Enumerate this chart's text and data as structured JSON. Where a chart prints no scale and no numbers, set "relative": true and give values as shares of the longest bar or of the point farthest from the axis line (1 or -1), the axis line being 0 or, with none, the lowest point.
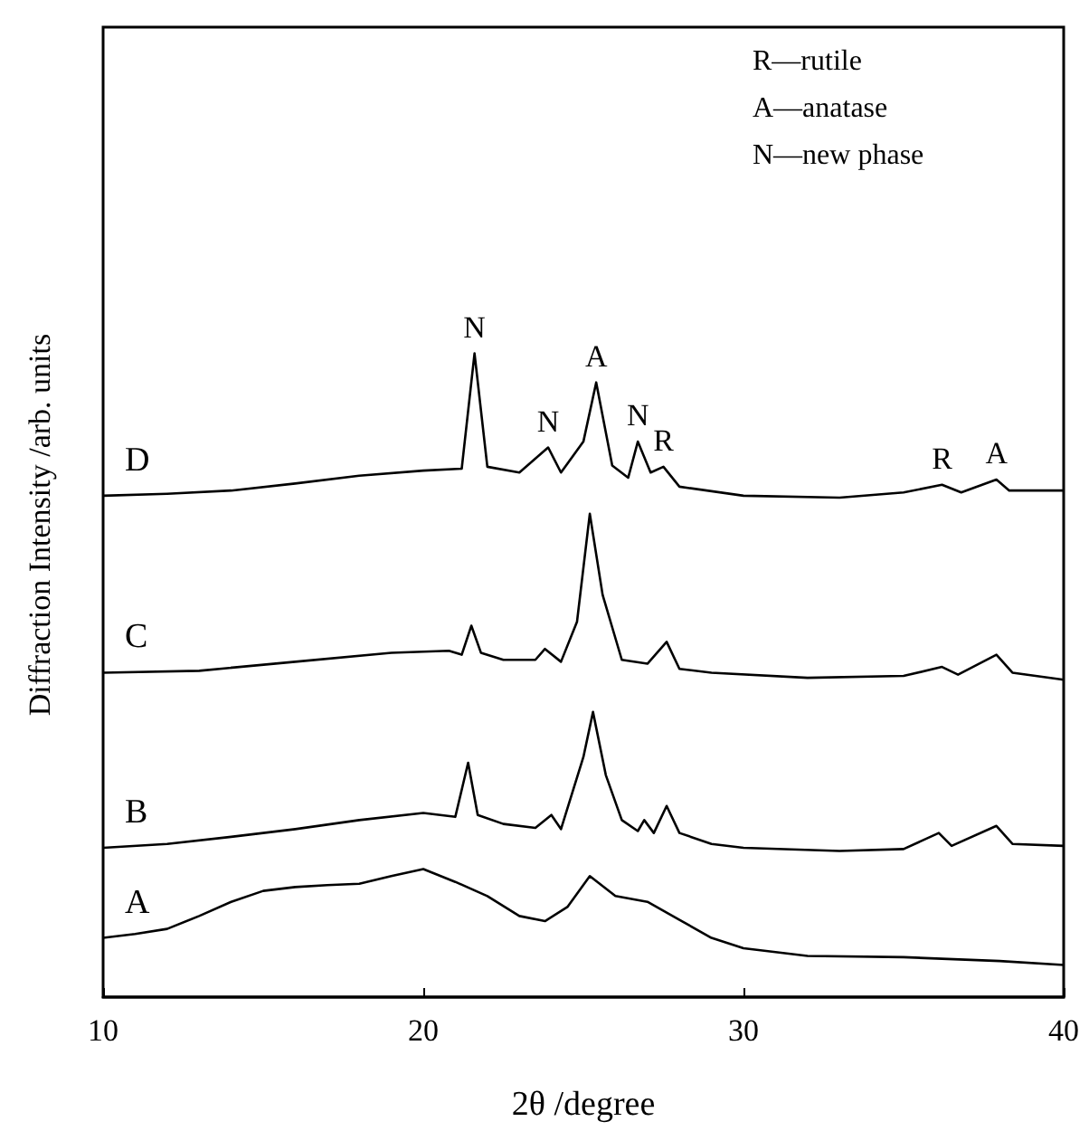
{
  "chart_data": {
    "type": "line",
    "relative": true,
    "xlabel": "2θ /degree",
    "ylabel": "Diffraction Intensity /arb. units",
    "xlim": [
      10,
      40
    ],
    "xticks": [
      10,
      20,
      30,
      40
    ],
    "grid": false,
    "legend": false,
    "marker": "none",
    "line_style": "solid",
    "annotations": [
      "R—rutile",
      "A—anatase",
      "N—new phase",
      {
        "text": "N",
        "x": 21.6,
        "y": 1
      },
      {
        "text": "N",
        "x": 23.9,
        "y": 0.854
      },
      {
        "text": "A",
        "x": 25.4,
        "y": 0.955
      },
      {
        "text": "N",
        "x": 26.7,
        "y": 0.863
      },
      {
        "text": "R",
        "x": 27.5,
        "y": 0.824
      },
      {
        "text": "R",
        "x": 36.2,
        "y": 0.796
      },
      {
        "text": "A",
        "x": 37.9,
        "y": 0.804
      }
    ],
    "series": [
      {
        "name": "A",
        "color": "#000000",
        "x": [
          10,
          11,
          12,
          13,
          14,
          15,
          16,
          17,
          18,
          19,
          20,
          21,
          22,
          23,
          23.8,
          24.5,
          25.2,
          26,
          27,
          28,
          29,
          30,
          32,
          35,
          38,
          40
        ],
        "values": [
          0.092,
          0.098,
          0.106,
          0.126,
          0.148,
          0.165,
          0.171,
          0.174,
          0.176,
          0.188,
          0.199,
          0.179,
          0.157,
          0.126,
          0.118,
          0.14,
          0.188,
          0.157,
          0.148,
          0.12,
          0.092,
          0.076,
          0.064,
          0.062,
          0.056,
          0.05
        ]
      },
      {
        "name": "B",
        "color": "#000000",
        "x": [
          10,
          12,
          14,
          16,
          18,
          20,
          21,
          21.4,
          21.7,
          22.5,
          23.5,
          24,
          24.3,
          25,
          25.3,
          25.7,
          26.2,
          26.7,
          26.9,
          27.2,
          27.6,
          28,
          29,
          30,
          33,
          35,
          36.1,
          36.5,
          37.9,
          38.4,
          40
        ],
        "values": [
          0.232,
          0.238,
          0.249,
          0.261,
          0.275,
          0.286,
          0.28,
          0.364,
          0.283,
          0.269,
          0.263,
          0.283,
          0.261,
          0.373,
          0.443,
          0.345,
          0.275,
          0.258,
          0.275,
          0.255,
          0.297,
          0.255,
          0.238,
          0.232,
          0.227,
          0.23,
          0.255,
          0.235,
          0.266,
          0.238,
          0.235
        ]
      },
      {
        "name": "C",
        "color": "#000000",
        "x": [
          10,
          13,
          16,
          19,
          20.8,
          21.2,
          21.5,
          21.8,
          22.5,
          23.5,
          23.8,
          24.3,
          24.8,
          25.2,
          25.6,
          26.2,
          27,
          27.6,
          28,
          29,
          32,
          35,
          36.2,
          36.7,
          37.9,
          38.4,
          40
        ],
        "values": [
          0.504,
          0.507,
          0.521,
          0.535,
          0.538,
          0.532,
          0.577,
          0.535,
          0.524,
          0.524,
          0.541,
          0.521,
          0.583,
          0.751,
          0.625,
          0.524,
          0.518,
          0.552,
          0.51,
          0.504,
          0.496,
          0.499,
          0.513,
          0.501,
          0.532,
          0.504,
          0.493
        ]
      },
      {
        "name": "D",
        "color": "#000000",
        "x": [
          10,
          12,
          14,
          16,
          18,
          20,
          21.2,
          21.6,
          22,
          23,
          23.9,
          24.3,
          25,
          25.4,
          25.9,
          26.4,
          26.7,
          27.1,
          27.5,
          28,
          30,
          33,
          35,
          36.2,
          36.8,
          37.9,
          38.3,
          40
        ],
        "values": [
          0.779,
          0.782,
          0.787,
          0.798,
          0.81,
          0.818,
          0.821,
          1,
          0.824,
          0.815,
          0.854,
          0.815,
          0.863,
          0.955,
          0.826,
          0.807,
          0.863,
          0.815,
          0.824,
          0.793,
          0.779,
          0.776,
          0.784,
          0.796,
          0.784,
          0.804,
          0.787,
          0.787
        ]
      }
    ]
  }
}
